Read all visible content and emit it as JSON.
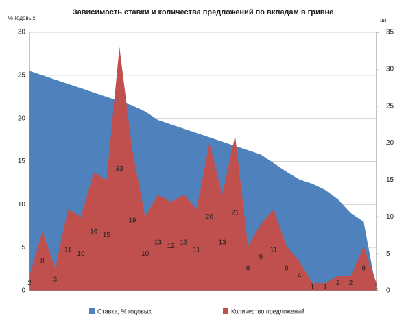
{
  "chart_data": {
    "type": "area",
    "title": "Зависимость ставки и количества предложений по вкладам в гривне",
    "y_label": "% годовых",
    "y2_label": "шт.",
    "categories": [
      null,
      null,
      null,
      null,
      null,
      null,
      null,
      null,
      null,
      null,
      null,
      null,
      null,
      null,
      null,
      null,
      null,
      null,
      null,
      null,
      null,
      null,
      null,
      null,
      null,
      null,
      null,
      null
    ],
    "series": [
      {
        "name": "Ставка, % годовых",
        "color": "#4f81bd",
        "values": [
          25.5,
          25.0,
          24.5,
          24.0,
          23.5,
          23.0,
          22.5,
          22.0,
          21.5,
          20.8,
          19.8,
          19.3,
          18.8,
          18.3,
          17.8,
          17.3,
          16.8,
          16.3,
          15.8,
          14.8,
          13.8,
          12.9,
          12.4,
          11.7,
          10.6,
          9.0,
          8.0,
          0
        ]
      },
      {
        "name": "Количество предложений",
        "color": "#c0504d",
        "axis": "y2",
        "data_labels": true,
        "values": [
          2,
          8,
          3,
          11,
          10,
          16,
          15,
          33,
          19,
          10,
          13,
          12,
          13,
          11,
          20,
          13,
          21,
          6,
          9,
          11,
          6,
          4,
          1,
          1,
          2,
          2,
          6,
          1
        ]
      }
    ],
    "ylim": [
      0,
      30
    ],
    "yticks": [
      0,
      5,
      10,
      15,
      20,
      25,
      30
    ],
    "y2lim": [
      0,
      35
    ],
    "y2ticks": [
      0,
      5,
      10,
      15,
      20,
      25,
      30,
      35
    ],
    "grid": true,
    "legend": "bottom"
  }
}
